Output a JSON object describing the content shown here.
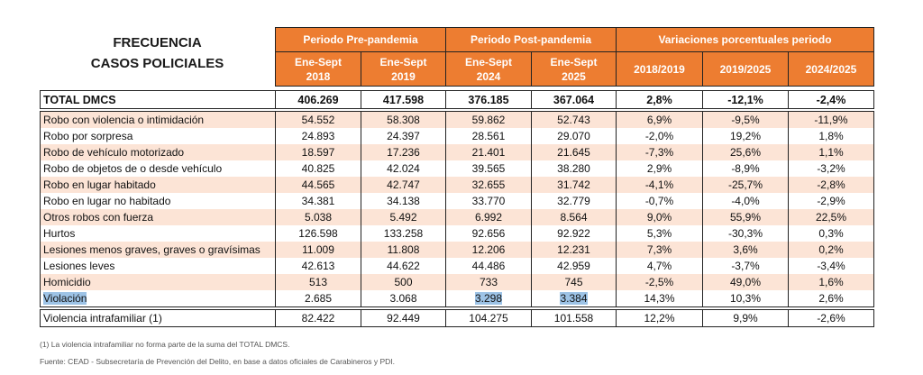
{
  "title": {
    "line1": "FRECUENCIA",
    "line2": "CASOS POLICIALES"
  },
  "header": {
    "groups": [
      "Periodo Pre-pandemia",
      "Periodo Post-pandemia",
      "Variaciones porcentuales periodo"
    ],
    "periods": [
      {
        "line1": "Ene-Sept",
        "line2": "2018"
      },
      {
        "line1": "Ene-Sept",
        "line2": "2019"
      },
      {
        "line1": "Ene-Sept",
        "line2": "2024"
      },
      {
        "line1": "Ene-Sept",
        "line2": "2025"
      }
    ],
    "variations": [
      "2018/2019",
      "2019/2025",
      "2024/2025"
    ]
  },
  "total": {
    "label": "TOTAL DMCS",
    "values": [
      "406.269",
      "417.598",
      "376.185",
      "367.064",
      "2,8%",
      "-12,1%",
      "-2,4%"
    ]
  },
  "rows": [
    {
      "label": "Robo con violencia o intimidación",
      "values": [
        "54.552",
        "58.308",
        "59.862",
        "52.743",
        "6,9%",
        "-9,5%",
        "-11,9%"
      ]
    },
    {
      "label": "Robo por sorpresa",
      "values": [
        "24.893",
        "24.397",
        "28.561",
        "29.070",
        "-2,0%",
        "19,2%",
        "1,8%"
      ]
    },
    {
      "label": "Robo de vehículo motorizado",
      "values": [
        "18.597",
        "17.236",
        "21.401",
        "21.645",
        "-7,3%",
        "25,6%",
        "1,1%"
      ]
    },
    {
      "label": "Robo de objetos de o desde vehículo",
      "values": [
        "40.825",
        "42.024",
        "39.565",
        "38.280",
        "2,9%",
        "-8,9%",
        "-3,2%"
      ]
    },
    {
      "label": "Robo en lugar habitado",
      "values": [
        "44.565",
        "42.747",
        "32.655",
        "31.742",
        "-4,1%",
        "-25,7%",
        "-2,8%"
      ]
    },
    {
      "label": "Robo en lugar no habitado",
      "values": [
        "34.381",
        "34.138",
        "33.770",
        "32.779",
        "-0,7%",
        "-4,0%",
        "-2,9%"
      ]
    },
    {
      "label": "Otros robos con fuerza",
      "values": [
        "5.038",
        "5.492",
        "6.992",
        "8.564",
        "9,0%",
        "55,9%",
        "22,5%"
      ]
    },
    {
      "label": "Hurtos",
      "values": [
        "126.598",
        "133.258",
        "92.656",
        "92.922",
        "5,3%",
        "-30,3%",
        "0,3%"
      ]
    },
    {
      "label": "Lesiones menos graves, graves o gravísimas",
      "values": [
        "11.009",
        "11.808",
        "12.206",
        "12.231",
        "7,3%",
        "3,6%",
        "0,2%"
      ]
    },
    {
      "label": "Lesiones leves",
      "values": [
        "42.613",
        "44.622",
        "44.486",
        "42.959",
        "4,7%",
        "-3,7%",
        "-3,4%"
      ]
    },
    {
      "label": "Homicidio",
      "values": [
        "513",
        "500",
        "733",
        "745",
        "-2,5%",
        "49,0%",
        "1,6%"
      ]
    },
    {
      "label": "Violación",
      "values": [
        "2.685",
        "3.068",
        "3.298",
        "3.384",
        "14,3%",
        "10,3%",
        "2,6%"
      ]
    }
  ],
  "vif": {
    "label": "Violencia intrafamiliar (1)",
    "values": [
      "82.422",
      "92.449",
      "104.275",
      "101.558",
      "12,2%",
      "9,9%",
      "-2,6%"
    ]
  },
  "notes": {
    "footnote": "(1) La violencia intrafamiliar no forma parte de la suma del TOTAL DMCS.",
    "source": "Fuente: CEAD - Subsecretaría de Prevención del Delito, en base a datos oficiales de Carabineros y PDI."
  },
  "colors": {
    "header_bg": "#ED7D31",
    "stripe": "#FCE4D6",
    "selection": "#9DC3E6"
  }
}
